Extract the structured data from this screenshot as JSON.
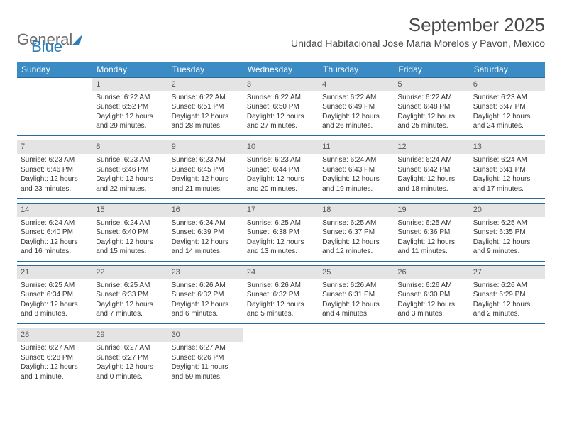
{
  "logo": {
    "general": "General",
    "blue": "Blue"
  },
  "title": "September 2025",
  "location": "Unidad Habitacional Jose Maria Morelos y Pavon, Mexico",
  "colors": {
    "header_bg": "#3b8bc4",
    "header_text": "#ffffff",
    "daynum_bg": "#e4e4e4",
    "border": "#2a6a9a",
    "text": "#333333",
    "logo_blue": "#2a7fba",
    "logo_gray": "#6b6b6b"
  },
  "day_headers": [
    "Sunday",
    "Monday",
    "Tuesday",
    "Wednesday",
    "Thursday",
    "Friday",
    "Saturday"
  ],
  "weeks": [
    [
      {
        "day": "",
        "lines": []
      },
      {
        "day": "1",
        "lines": [
          "Sunrise: 6:22 AM",
          "Sunset: 6:52 PM",
          "Daylight: 12 hours and 29 minutes."
        ]
      },
      {
        "day": "2",
        "lines": [
          "Sunrise: 6:22 AM",
          "Sunset: 6:51 PM",
          "Daylight: 12 hours and 28 minutes."
        ]
      },
      {
        "day": "3",
        "lines": [
          "Sunrise: 6:22 AM",
          "Sunset: 6:50 PM",
          "Daylight: 12 hours and 27 minutes."
        ]
      },
      {
        "day": "4",
        "lines": [
          "Sunrise: 6:22 AM",
          "Sunset: 6:49 PM",
          "Daylight: 12 hours and 26 minutes."
        ]
      },
      {
        "day": "5",
        "lines": [
          "Sunrise: 6:22 AM",
          "Sunset: 6:48 PM",
          "Daylight: 12 hours and 25 minutes."
        ]
      },
      {
        "day": "6",
        "lines": [
          "Sunrise: 6:23 AM",
          "Sunset: 6:47 PM",
          "Daylight: 12 hours and 24 minutes."
        ]
      }
    ],
    [
      {
        "day": "7",
        "lines": [
          "Sunrise: 6:23 AM",
          "Sunset: 6:46 PM",
          "Daylight: 12 hours and 23 minutes."
        ]
      },
      {
        "day": "8",
        "lines": [
          "Sunrise: 6:23 AM",
          "Sunset: 6:46 PM",
          "Daylight: 12 hours and 22 minutes."
        ]
      },
      {
        "day": "9",
        "lines": [
          "Sunrise: 6:23 AM",
          "Sunset: 6:45 PM",
          "Daylight: 12 hours and 21 minutes."
        ]
      },
      {
        "day": "10",
        "lines": [
          "Sunrise: 6:23 AM",
          "Sunset: 6:44 PM",
          "Daylight: 12 hours and 20 minutes."
        ]
      },
      {
        "day": "11",
        "lines": [
          "Sunrise: 6:24 AM",
          "Sunset: 6:43 PM",
          "Daylight: 12 hours and 19 minutes."
        ]
      },
      {
        "day": "12",
        "lines": [
          "Sunrise: 6:24 AM",
          "Sunset: 6:42 PM",
          "Daylight: 12 hours and 18 minutes."
        ]
      },
      {
        "day": "13",
        "lines": [
          "Sunrise: 6:24 AM",
          "Sunset: 6:41 PM",
          "Daylight: 12 hours and 17 minutes."
        ]
      }
    ],
    [
      {
        "day": "14",
        "lines": [
          "Sunrise: 6:24 AM",
          "Sunset: 6:40 PM",
          "Daylight: 12 hours and 16 minutes."
        ]
      },
      {
        "day": "15",
        "lines": [
          "Sunrise: 6:24 AM",
          "Sunset: 6:40 PM",
          "Daylight: 12 hours and 15 minutes."
        ]
      },
      {
        "day": "16",
        "lines": [
          "Sunrise: 6:24 AM",
          "Sunset: 6:39 PM",
          "Daylight: 12 hours and 14 minutes."
        ]
      },
      {
        "day": "17",
        "lines": [
          "Sunrise: 6:25 AM",
          "Sunset: 6:38 PM",
          "Daylight: 12 hours and 13 minutes."
        ]
      },
      {
        "day": "18",
        "lines": [
          "Sunrise: 6:25 AM",
          "Sunset: 6:37 PM",
          "Daylight: 12 hours and 12 minutes."
        ]
      },
      {
        "day": "19",
        "lines": [
          "Sunrise: 6:25 AM",
          "Sunset: 6:36 PM",
          "Daylight: 12 hours and 11 minutes."
        ]
      },
      {
        "day": "20",
        "lines": [
          "Sunrise: 6:25 AM",
          "Sunset: 6:35 PM",
          "Daylight: 12 hours and 9 minutes."
        ]
      }
    ],
    [
      {
        "day": "21",
        "lines": [
          "Sunrise: 6:25 AM",
          "Sunset: 6:34 PM",
          "Daylight: 12 hours and 8 minutes."
        ]
      },
      {
        "day": "22",
        "lines": [
          "Sunrise: 6:25 AM",
          "Sunset: 6:33 PM",
          "Daylight: 12 hours and 7 minutes."
        ]
      },
      {
        "day": "23",
        "lines": [
          "Sunrise: 6:26 AM",
          "Sunset: 6:32 PM",
          "Daylight: 12 hours and 6 minutes."
        ]
      },
      {
        "day": "24",
        "lines": [
          "Sunrise: 6:26 AM",
          "Sunset: 6:32 PM",
          "Daylight: 12 hours and 5 minutes."
        ]
      },
      {
        "day": "25",
        "lines": [
          "Sunrise: 6:26 AM",
          "Sunset: 6:31 PM",
          "Daylight: 12 hours and 4 minutes."
        ]
      },
      {
        "day": "26",
        "lines": [
          "Sunrise: 6:26 AM",
          "Sunset: 6:30 PM",
          "Daylight: 12 hours and 3 minutes."
        ]
      },
      {
        "day": "27",
        "lines": [
          "Sunrise: 6:26 AM",
          "Sunset: 6:29 PM",
          "Daylight: 12 hours and 2 minutes."
        ]
      }
    ],
    [
      {
        "day": "28",
        "lines": [
          "Sunrise: 6:27 AM",
          "Sunset: 6:28 PM",
          "Daylight: 12 hours and 1 minute."
        ]
      },
      {
        "day": "29",
        "lines": [
          "Sunrise: 6:27 AM",
          "Sunset: 6:27 PM",
          "Daylight: 12 hours and 0 minutes."
        ]
      },
      {
        "day": "30",
        "lines": [
          "Sunrise: 6:27 AM",
          "Sunset: 6:26 PM",
          "Daylight: 11 hours and 59 minutes."
        ]
      },
      {
        "day": "",
        "lines": []
      },
      {
        "day": "",
        "lines": []
      },
      {
        "day": "",
        "lines": []
      },
      {
        "day": "",
        "lines": []
      }
    ]
  ]
}
